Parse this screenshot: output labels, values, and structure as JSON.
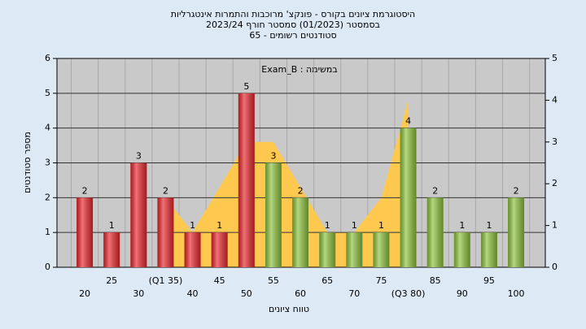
{
  "chart_data": {
    "type": "bar",
    "title_lines": [
      "היסטוגרמת ציונים בקורס - פונקצ' מרוכבות והתמרות אינטגרליות",
      "בסמסטר  (01/2023)  סמסטר חורף  2023/24",
      "סטודנטים רשומים - 65"
    ],
    "annotation": "Exam_B : במשימה",
    "x_label": "טווח ציונים",
    "y_label": "מספר סטודנטים",
    "categories": [
      "20",
      "25",
      "30",
      "(Q1 35)",
      "40",
      "45",
      "50",
      "55",
      "60",
      "65",
      "70",
      "75",
      "(Q3 80)",
      "85",
      "90",
      "95",
      "100"
    ],
    "values": [
      2,
      1,
      3,
      2,
      1,
      1,
      5,
      3,
      2,
      1,
      1,
      1,
      4,
      2,
      1,
      1,
      2
    ],
    "colors": [
      "#e8262c",
      "#e8262c",
      "#e8262c",
      "#e8262c",
      "#e8262c",
      "#e8262c",
      "#e8262c",
      "#8cc23c",
      "#8cc23c",
      "#8cc23c",
      "#8cc23c",
      "#8cc23c",
      "#8cc23c",
      "#8cc23c",
      "#8cc23c",
      "#8cc23c",
      "#8cc23c"
    ],
    "area": {
      "color": "#ffc94f",
      "values": [
        null,
        null,
        null,
        2,
        1,
        2.3,
        3.6,
        3.6,
        2.3,
        1,
        1,
        2,
        4.8,
        null,
        null,
        null,
        null
      ]
    },
    "ylim": [
      0,
      6
    ],
    "yticks": [
      0,
      1,
      2,
      3,
      4,
      5,
      6
    ],
    "y2lim": [
      0,
      5
    ],
    "y2ticks": [
      0,
      1,
      2,
      3,
      4,
      5
    ],
    "grid": true
  }
}
